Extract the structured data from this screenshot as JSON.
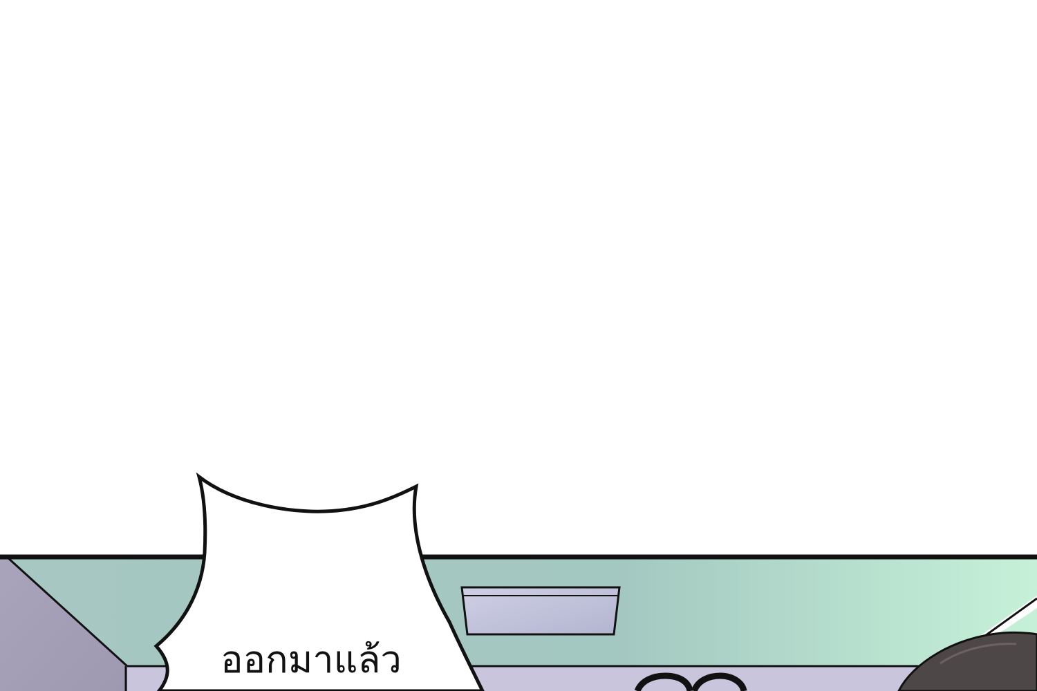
{
  "speech_bubble": {
    "text": "ออกมาแล้ว"
  },
  "colors": {
    "page_background": "#ffffff",
    "wall": "#a6c7c2",
    "wall_highlight": "#c6f1d8",
    "side_wall": "#a49fb8",
    "ceiling_light": "#bfbfd8",
    "outline": "#111111",
    "hair": "#4e4748"
  }
}
